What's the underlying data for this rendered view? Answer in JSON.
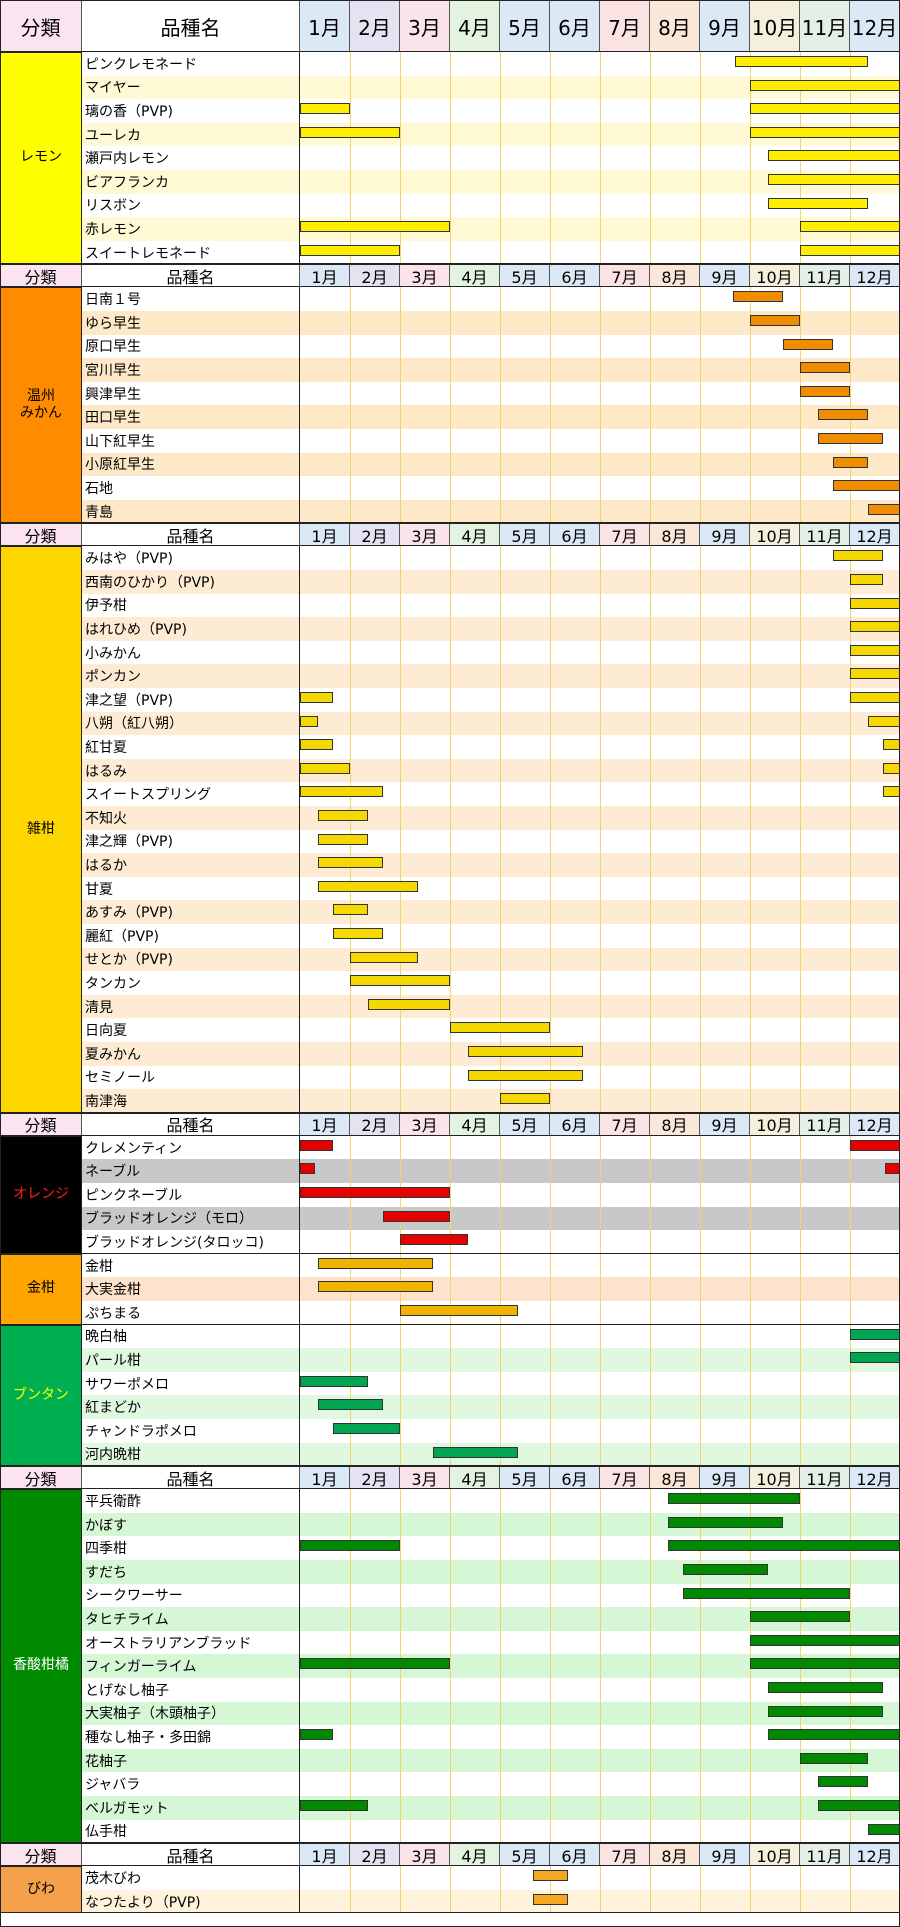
{
  "header": {
    "category_label": "分類",
    "name_label": "品種名",
    "months": [
      "1月",
      "2月",
      "3月",
      "4月",
      "5月",
      "6月",
      "7月",
      "8月",
      "9月",
      "10月",
      "11月",
      "12月"
    ]
  },
  "colors": {
    "month_headers": [
      "#dbe9f6",
      "#e3e3f2",
      "#fbe3ea",
      "#e3f3df",
      "#dbe9f6",
      "#dbe9f6",
      "#fbe3e3",
      "#fbe7d8",
      "#dbe9f6",
      "#f5f0dc",
      "#e3efe7",
      "#dbe9f6"
    ],
    "bar": {
      "lemon": "#ffee00",
      "unshu": "#f08c00",
      "zakkan": "#f5d800",
      "orange": "#e60000",
      "kinkan": "#f2b200",
      "buntan": "#00a651",
      "kosan": "#008a00",
      "biwa": "#f5a623"
    }
  },
  "sections": [
    {
      "id": "lemon",
      "category": "レモン",
      "cat_bg": "#ffff00",
      "cat_color": "#000",
      "alt_bg": "#fff9d6",
      "bar": "lemon",
      "big_header": true,
      "items": [
        {
          "name": "ピンクレモネード",
          "periods": [
            [
              8.7,
              11.35
            ]
          ]
        },
        {
          "name": "マイヤー",
          "periods": [
            [
              9.0,
              12.0
            ]
          ]
        },
        {
          "name": "璃の香（PVP)",
          "periods": [
            [
              0.0,
              1.0
            ],
            [
              9.0,
              12.0
            ]
          ]
        },
        {
          "name": "ユーレカ",
          "periods": [
            [
              0.0,
              2.0
            ],
            [
              9.0,
              12.0
            ]
          ]
        },
        {
          "name": "瀬戸内レモン",
          "periods": [
            [
              9.35,
              12.0
            ]
          ]
        },
        {
          "name": "ビアフランカ",
          "periods": [
            [
              9.35,
              12.0
            ]
          ]
        },
        {
          "name": "リスボン",
          "periods": [
            [
              9.35,
              11.35
            ]
          ]
        },
        {
          "name": "赤レモン",
          "periods": [
            [
              0.0,
              3.0
            ],
            [
              10.0,
              12.0
            ]
          ]
        },
        {
          "name": "スイートレモネード",
          "periods": [
            [
              0.0,
              2.0
            ],
            [
              10.0,
              12.0
            ]
          ]
        }
      ]
    },
    {
      "id": "unshu",
      "category": "温州\nみかん",
      "cat_bg": "#ff8c00",
      "cat_color": "#000",
      "alt_bg": "#fde9c8",
      "bar": "unshu",
      "big_header": false,
      "items": [
        {
          "name": "日南１号",
          "periods": [
            [
              8.65,
              9.65
            ]
          ]
        },
        {
          "name": "ゆら早生",
          "periods": [
            [
              9.0,
              10.0
            ]
          ]
        },
        {
          "name": "原口早生",
          "periods": [
            [
              9.65,
              10.65
            ]
          ]
        },
        {
          "name": "宮川早生",
          "periods": [
            [
              10.0,
              11.0
            ]
          ]
        },
        {
          "name": "興津早生",
          "periods": [
            [
              10.0,
              11.0
            ]
          ]
        },
        {
          "name": "田口早生",
          "periods": [
            [
              10.35,
              11.35
            ]
          ]
        },
        {
          "name": "山下紅早生",
          "periods": [
            [
              10.35,
              11.65
            ]
          ]
        },
        {
          "name": "小原紅早生",
          "periods": [
            [
              10.65,
              11.35
            ]
          ]
        },
        {
          "name": "石地",
          "periods": [
            [
              10.65,
              12.0
            ]
          ]
        },
        {
          "name": "青島",
          "periods": [
            [
              11.35,
              12.0
            ]
          ]
        }
      ]
    },
    {
      "id": "zakkan",
      "category": "雑柑",
      "cat_bg": "#ffd700",
      "cat_color": "#000",
      "alt_bg": "#fdebd3",
      "bar": "zakkan",
      "big_header": false,
      "items": [
        {
          "name": "みはや（PVP)",
          "periods": [
            [
              10.65,
              11.65
            ]
          ]
        },
        {
          "name": "西南のひかり（PVP)",
          "periods": [
            [
              11.0,
              11.65
            ]
          ]
        },
        {
          "name": "伊予柑",
          "periods": [
            [
              11.0,
              12.0
            ]
          ]
        },
        {
          "name": "はれひめ（PVP)",
          "periods": [
            [
              11.0,
              12.0
            ]
          ]
        },
        {
          "name": "小みかん",
          "periods": [
            [
              11.0,
              12.0
            ]
          ]
        },
        {
          "name": "ポンカン",
          "periods": [
            [
              11.0,
              12.0
            ]
          ]
        },
        {
          "name": "津之望（PVP)",
          "periods": [
            [
              0.0,
              0.65
            ],
            [
              11.0,
              12.0
            ]
          ]
        },
        {
          "name": "八朔（紅八朔）",
          "periods": [
            [
              0.0,
              0.35
            ],
            [
              11.35,
              12.0
            ]
          ]
        },
        {
          "name": "紅甘夏",
          "periods": [
            [
              0.0,
              0.65
            ],
            [
              11.65,
              12.0
            ]
          ]
        },
        {
          "name": "はるみ",
          "periods": [
            [
              0.0,
              1.0
            ],
            [
              11.65,
              12.0
            ]
          ]
        },
        {
          "name": "スイートスプリング",
          "periods": [
            [
              0.0,
              1.65
            ],
            [
              11.65,
              12.0
            ]
          ]
        },
        {
          "name": "不知火",
          "periods": [
            [
              0.35,
              1.35
            ]
          ]
        },
        {
          "name": "津之輝（PVP)",
          "periods": [
            [
              0.35,
              1.35
            ]
          ]
        },
        {
          "name": "はるか",
          "periods": [
            [
              0.35,
              1.65
            ]
          ]
        },
        {
          "name": "甘夏",
          "periods": [
            [
              0.35,
              2.35
            ]
          ]
        },
        {
          "name": "あすみ（PVP)",
          "periods": [
            [
              0.65,
              1.35
            ]
          ]
        },
        {
          "name": "麗紅（PVP)",
          "periods": [
            [
              0.65,
              1.65
            ]
          ]
        },
        {
          "name": "せとか（PVP)",
          "periods": [
            [
              1.0,
              2.35
            ]
          ]
        },
        {
          "name": "タンカン",
          "periods": [
            [
              1.0,
              3.0
            ]
          ]
        },
        {
          "name": "清見",
          "periods": [
            [
              1.35,
              3.0
            ]
          ]
        },
        {
          "name": "日向夏",
          "periods": [
            [
              3.0,
              5.0
            ]
          ]
        },
        {
          "name": "夏みかん",
          "periods": [
            [
              3.35,
              5.65
            ]
          ]
        },
        {
          "name": "セミノール",
          "periods": [
            [
              3.35,
              5.65
            ]
          ]
        },
        {
          "name": "南津海",
          "periods": [
            [
              4.0,
              5.0
            ]
          ]
        }
      ]
    },
    {
      "id": "orange",
      "category": "オレンジ",
      "cat_bg": "#000000",
      "cat_color": "#ff2020",
      "alt_bg": "#c8c8c8",
      "bar": "orange",
      "big_header": false,
      "items": [
        {
          "name": "クレメンティン",
          "periods": [
            [
              0.0,
              0.65
            ],
            [
              11.0,
              12.0
            ]
          ]
        },
        {
          "name": "ネーブル",
          "periods": [
            [
              0.0,
              0.3
            ],
            [
              11.7,
              12.0
            ]
          ]
        },
        {
          "name": "ピンクネーブル",
          "periods": [
            [
              0.0,
              3.0
            ]
          ]
        },
        {
          "name": "ブラッドオレンジ（モロ）",
          "periods": [
            [
              1.65,
              3.0
            ]
          ]
        },
        {
          "name": "ブラッドオレンジ(タロッコ)",
          "periods": [
            [
              2.0,
              3.35
            ]
          ]
        }
      ]
    },
    {
      "id": "kinkan",
      "category": "金柑",
      "cat_bg": "#ffa500",
      "cat_color": "#000",
      "alt_bg": "#fde3cc",
      "bar": "kinkan",
      "no_header": true,
      "items": [
        {
          "name": "金柑",
          "periods": [
            [
              0.35,
              2.65
            ]
          ]
        },
        {
          "name": "大実金柑",
          "periods": [
            [
              0.35,
              2.65
            ]
          ]
        },
        {
          "name": "ぷちまる",
          "periods": [
            [
              2.0,
              4.35
            ]
          ]
        }
      ]
    },
    {
      "id": "buntan",
      "category": "ブンタン",
      "cat_bg": "#00b050",
      "cat_color": "#ffff00",
      "alt_bg": "#e0f7e0",
      "bar": "buntan",
      "no_header": true,
      "items": [
        {
          "name": "晩白柚",
          "periods": [
            [
              11.0,
              12.0
            ]
          ]
        },
        {
          "name": "パール柑",
          "periods": [
            [
              11.0,
              12.0
            ]
          ]
        },
        {
          "name": "サワーポメロ",
          "periods": [
            [
              0.0,
              1.35
            ]
          ]
        },
        {
          "name": "紅まどか",
          "periods": [
            [
              0.35,
              1.65
            ]
          ]
        },
        {
          "name": "チャンドラポメロ",
          "periods": [
            [
              0.65,
              2.0
            ]
          ]
        },
        {
          "name": "河内晩柑",
          "periods": [
            [
              2.65,
              4.35
            ]
          ]
        }
      ]
    },
    {
      "id": "kosan",
      "category": "香酸柑橘",
      "cat_bg": "#008a00",
      "cat_color": "#fff",
      "alt_bg": "#d6f7d6",
      "bar": "kosan",
      "big_header": false,
      "items": [
        {
          "name": "平兵衛酢",
          "periods": [
            [
              7.35,
              10.0
            ]
          ]
        },
        {
          "name": "かぼす",
          "periods": [
            [
              7.35,
              9.65
            ]
          ]
        },
        {
          "name": "四季柑",
          "periods": [
            [
              0.0,
              2.0
            ],
            [
              7.35,
              12.0
            ]
          ]
        },
        {
          "name": "すだち",
          "periods": [
            [
              7.65,
              9.35
            ]
          ]
        },
        {
          "name": "シークワーサー",
          "periods": [
            [
              7.65,
              11.0
            ]
          ]
        },
        {
          "name": "タヒチライム",
          "periods": [
            [
              9.0,
              11.0
            ]
          ]
        },
        {
          "name": "オーストラリアンブラッド",
          "periods": [
            [
              9.0,
              12.0
            ]
          ]
        },
        {
          "name": "フィンガーライム",
          "periods": [
            [
              0.0,
              3.0
            ],
            [
              9.0,
              12.0
            ]
          ]
        },
        {
          "name": "とげなし柚子",
          "periods": [
            [
              9.35,
              11.65
            ]
          ]
        },
        {
          "name": "大実柚子（木頭柚子）",
          "periods": [
            [
              9.35,
              11.65
            ]
          ]
        },
        {
          "name": "種なし柚子・多田錦",
          "periods": [
            [
              0.0,
              0.65
            ],
            [
              9.35,
              12.0
            ]
          ]
        },
        {
          "name": "花柚子",
          "periods": [
            [
              10.0,
              11.35
            ]
          ]
        },
        {
          "name": "ジャバラ",
          "periods": [
            [
              10.35,
              11.35
            ]
          ]
        },
        {
          "name": "ベルガモット",
          "periods": [
            [
              0.0,
              1.35
            ],
            [
              10.35,
              12.0
            ]
          ]
        },
        {
          "name": "仏手柑",
          "periods": [
            [
              11.35,
              12.0
            ]
          ]
        }
      ]
    },
    {
      "id": "biwa",
      "category": "びわ",
      "cat_bg": "#f5a04a",
      "cat_color": "#000",
      "alt_bg": "#fff3dc",
      "bar": "biwa",
      "big_header": false,
      "items": [
        {
          "name": "茂木びわ",
          "periods": [
            [
              4.65,
              5.35
            ]
          ]
        },
        {
          "name": "なつたより（PVP)",
          "periods": [
            [
              4.65,
              5.35
            ]
          ]
        }
      ]
    }
  ]
}
